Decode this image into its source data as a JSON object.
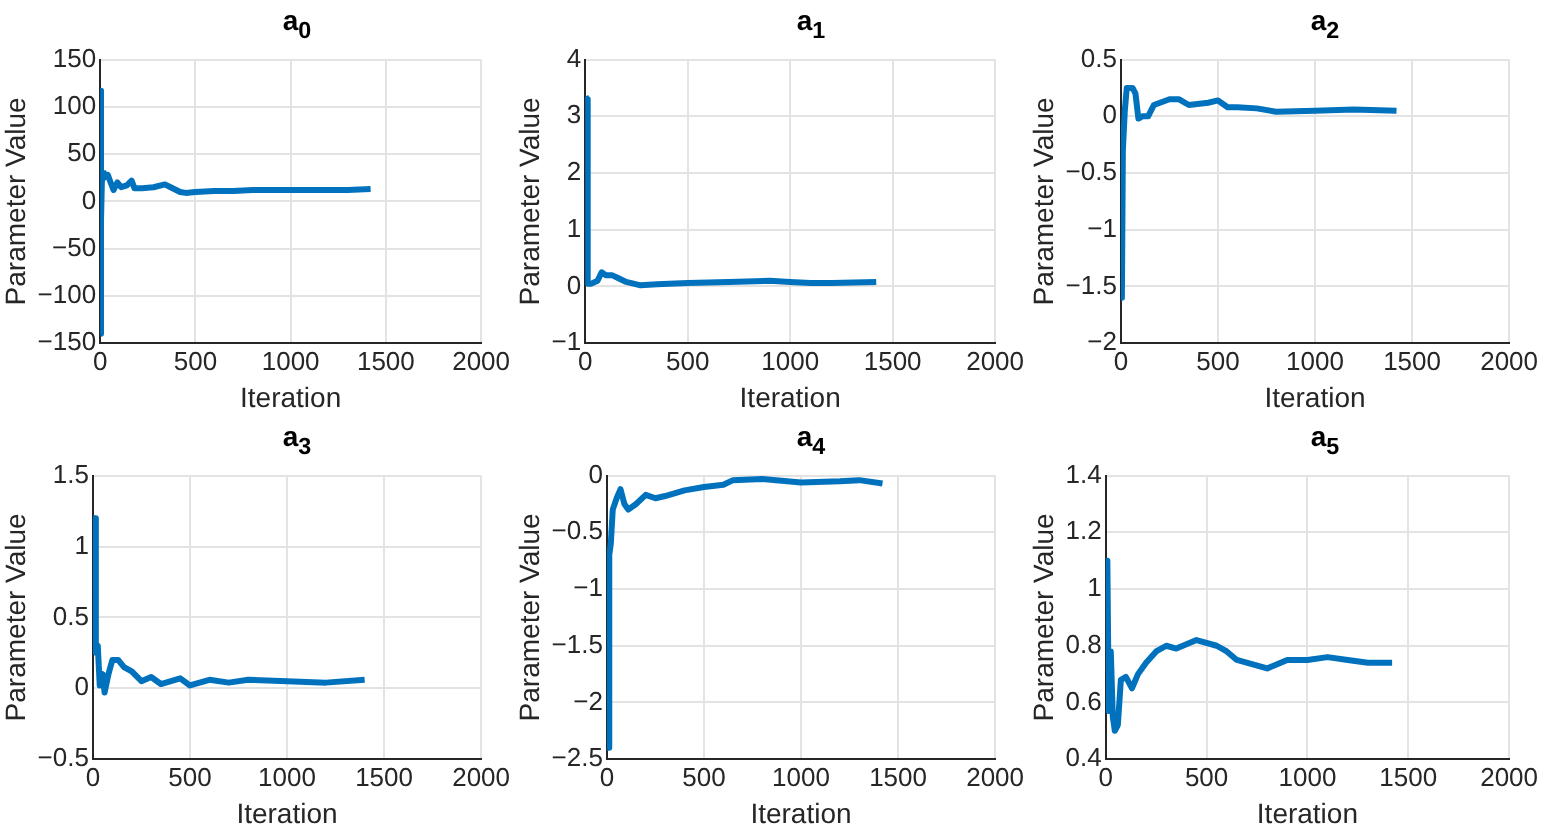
{
  "chart_data": [
    {
      "type": "line",
      "title": "a$_{0}$",
      "xlabel": "Iteration",
      "ylabel": "Parameter Value",
      "grid": true,
      "xlim": [
        0,
        2000
      ],
      "xticks": [
        0,
        500,
        1000,
        1500,
        2000
      ],
      "ylim": [
        -150,
        150
      ],
      "yticks": [
        {
          "value": -150,
          "label": "−150"
        },
        {
          "value": -100,
          "label": "−100"
        },
        {
          "value": -50,
          "label": "−50"
        },
        0,
        50,
        100,
        150
      ],
      "x": [
        1,
        3,
        6,
        10,
        20,
        40,
        55,
        70,
        90,
        110,
        140,
        165,
        180,
        220,
        280,
        340,
        370,
        420,
        450,
        500,
        600,
        700,
        800,
        900,
        1000,
        1100,
        1200,
        1300,
        1420
      ],
      "series": [
        {
          "color": "#0072bd",
          "values": [
            -140,
            117,
            -20,
            30,
            25,
            28,
            20,
            12,
            20,
            15,
            17,
            22,
            14,
            14,
            15,
            18,
            15,
            10,
            9,
            10,
            11,
            11,
            12,
            12,
            12,
            12,
            12,
            12,
            13
          ]
        }
      ]
    },
    {
      "type": "line",
      "title": "a$_{1}$",
      "xlabel": "Iteration",
      "ylabel": "Parameter Value",
      "grid": true,
      "xlim": [
        0,
        2000
      ],
      "xticks": [
        0,
        500,
        1000,
        1500,
        2000
      ],
      "ylim": [
        -1,
        4
      ],
      "yticks": [
        {
          "value": -1,
          "label": "−1"
        },
        0,
        1,
        2,
        3,
        4
      ],
      "x": [
        1,
        8,
        12,
        30,
        60,
        80,
        100,
        130,
        160,
        200,
        270,
        350,
        500,
        700,
        900,
        1000,
        1100,
        1200,
        1420
      ],
      "series": [
        {
          "color": "#0072bd",
          "values": [
            3.35,
            3.3,
            0.05,
            0.05,
            0.1,
            0.25,
            0.2,
            0.2,
            0.15,
            0.08,
            0.02,
            0.04,
            0.06,
            0.08,
            0.1,
            0.08,
            0.06,
            0.06,
            0.08
          ]
        }
      ]
    },
    {
      "type": "line",
      "title": "a$_{2}$",
      "xlabel": "Iteration",
      "ylabel": "Parameter Value",
      "grid": true,
      "xlim": [
        0,
        2000
      ],
      "xticks": [
        0,
        500,
        1000,
        1500,
        2000
      ],
      "ylim": [
        -2,
        0.5
      ],
      "yticks": [
        {
          "value": -2,
          "label": "−2"
        },
        {
          "value": -1.5,
          "label": "−1.5"
        },
        {
          "value": -1,
          "label": "−1"
        },
        {
          "value": -0.5,
          "label": "−0.5"
        },
        0,
        0.5
      ],
      "x": [
        1,
        5,
        10,
        20,
        30,
        60,
        75,
        90,
        110,
        140,
        170,
        250,
        300,
        350,
        450,
        500,
        550,
        600,
        700,
        800,
        1000,
        1200,
        1420
      ],
      "series": [
        {
          "color": "#0072bd",
          "values": [
            -1.55,
            -1.6,
            -0.3,
            0.05,
            0.25,
            0.25,
            0.2,
            -0.02,
            0,
            0,
            0.1,
            0.15,
            0.15,
            0.1,
            0.12,
            0.14,
            0.08,
            0.08,
            0.07,
            0.04,
            0.05,
            0.06,
            0.05
          ]
        }
      ]
    },
    {
      "type": "line",
      "title": "a$_{3}$",
      "xlabel": "Iteration",
      "ylabel": "Parameter Value",
      "grid": true,
      "xlim": [
        0,
        2000
      ],
      "xticks": [
        0,
        500,
        1000,
        1500,
        2000
      ],
      "ylim": [
        -0.5,
        1.5
      ],
      "yticks": [
        {
          "value": -0.5,
          "label": "−0.5"
        },
        0,
        0.5,
        1,
        1.5
      ],
      "x": [
        1,
        10,
        15,
        25,
        35,
        50,
        60,
        80,
        100,
        130,
        160,
        200,
        250,
        300,
        350,
        450,
        500,
        550,
        600,
        700,
        800,
        1000,
        1200,
        1400
      ],
      "series": [
        {
          "color": "#0072bd",
          "values": [
            1.2,
            1.2,
            0.25,
            0.3,
            0.02,
            0.1,
            -0.03,
            0.1,
            0.2,
            0.2,
            0.15,
            0.12,
            0.05,
            0.08,
            0.03,
            0.07,
            0.02,
            0.04,
            0.06,
            0.04,
            0.06,
            0.05,
            0.04,
            0.06
          ]
        }
      ]
    },
    {
      "type": "line",
      "title": "a$_{4}$",
      "xlabel": "Iteration",
      "ylabel": "Parameter Value",
      "grid": true,
      "xlim": [
        0,
        2000
      ],
      "xticks": [
        0,
        500,
        1000,
        1500,
        2000
      ],
      "ylim": [
        -2.5,
        0
      ],
      "yticks": [
        {
          "value": -2.5,
          "label": "−2.5"
        },
        {
          "value": -2,
          "label": "−2"
        },
        {
          "value": -1.5,
          "label": "−1.5"
        },
        {
          "value": -1,
          "label": "−1"
        },
        {
          "value": -0.5,
          "label": "−0.5"
        },
        0
      ],
      "x": [
        1,
        8,
        12,
        20,
        30,
        50,
        70,
        90,
        110,
        150,
        200,
        250,
        300,
        400,
        500,
        600,
        650,
        800,
        1000,
        1200,
        1300,
        1420
      ],
      "series": [
        {
          "color": "#0072bd",
          "values": [
            -2.4,
            -2.4,
            -0.7,
            -0.6,
            -0.3,
            -0.2,
            -0.12,
            -0.25,
            -0.3,
            -0.25,
            -0.17,
            -0.2,
            -0.18,
            -0.13,
            -0.1,
            -0.08,
            -0.04,
            -0.03,
            -0.06,
            -0.05,
            -0.04,
            -0.07
          ]
        }
      ]
    },
    {
      "type": "line",
      "title": "a$_{5}$",
      "xlabel": "Iteration",
      "ylabel": "Parameter Value",
      "grid": true,
      "xlim": [
        0,
        2000
      ],
      "xticks": [
        0,
        500,
        1000,
        1500,
        2000
      ],
      "ylim": [
        0.4,
        1.4
      ],
      "yticks": [
        0.4,
        0.6,
        0.8,
        1,
        1.2,
        1.4
      ],
      "x": [
        1,
        8,
        15,
        25,
        35,
        45,
        60,
        75,
        100,
        130,
        160,
        200,
        250,
        300,
        350,
        450,
        550,
        600,
        650,
        800,
        900,
        1000,
        1100,
        1200,
        1300,
        1420
      ],
      "series": [
        {
          "color": "#0072bd",
          "values": [
            1.1,
            1.1,
            0.57,
            0.78,
            0.55,
            0.5,
            0.52,
            0.68,
            0.69,
            0.65,
            0.7,
            0.74,
            0.78,
            0.8,
            0.79,
            0.82,
            0.8,
            0.78,
            0.75,
            0.72,
            0.75,
            0.75,
            0.76,
            0.75,
            0.74,
            0.74
          ]
        }
      ]
    }
  ]
}
